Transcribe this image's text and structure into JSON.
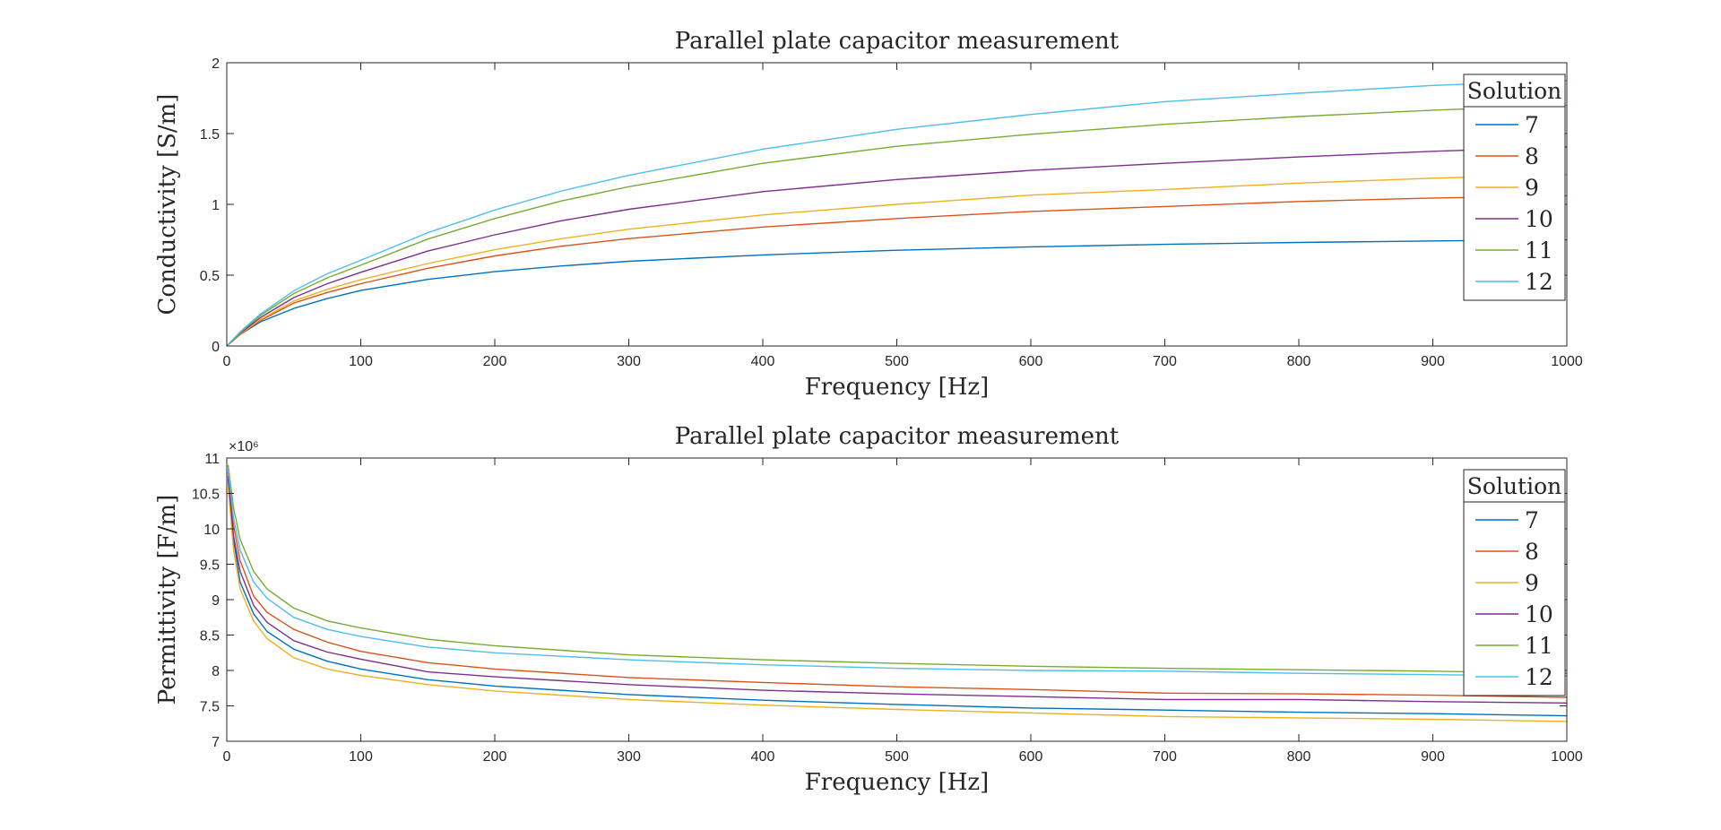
{
  "chart_data": [
    {
      "type": "line",
      "title": "Parallel plate capacitor measurement",
      "xlabel": "Frequency [Hz]",
      "ylabel": "Conductivity [S/m]",
      "xlim": [
        0,
        1000
      ],
      "ylim": [
        0,
        2
      ],
      "xticks": [
        0,
        100,
        200,
        300,
        400,
        500,
        600,
        700,
        800,
        900,
        1000
      ],
      "xtick_labels": [
        "0",
        "100",
        "200",
        "300",
        "400",
        "500",
        "600",
        "700",
        "800",
        "900",
        "1000"
      ],
      "yticks": [
        0,
        0.5,
        1,
        1.5,
        2
      ],
      "ytick_labels": [
        "0",
        "0.5",
        "1",
        "1.5",
        "2"
      ],
      "grid": false,
      "legend": {
        "title": "Solution",
        "location": "top-right"
      },
      "x": [
        0,
        10,
        25,
        50,
        75,
        100,
        150,
        200,
        250,
        300,
        400,
        500,
        600,
        700,
        800,
        900,
        1000
      ],
      "series": [
        {
          "name": "7",
          "color": "#0072BD",
          "values": [
            0,
            0.081,
            0.17,
            0.265,
            0.335,
            0.392,
            0.47,
            0.525,
            0.565,
            0.598,
            0.643,
            0.676,
            0.7,
            0.718,
            0.731,
            0.742,
            0.75
          ]
        },
        {
          "name": "8",
          "color": "#D95319",
          "values": [
            0,
            0.082,
            0.18,
            0.303,
            0.378,
            0.44,
            0.549,
            0.636,
            0.705,
            0.758,
            0.84,
            0.9,
            0.95,
            0.985,
            1.02,
            1.045,
            1.06
          ]
        },
        {
          "name": "9",
          "color": "#EDB120",
          "values": [
            0,
            0.085,
            0.186,
            0.318,
            0.4,
            0.468,
            0.582,
            0.68,
            0.758,
            0.825,
            0.925,
            1.0,
            1.065,
            1.105,
            1.15,
            1.185,
            1.21
          ]
        },
        {
          "name": "10",
          "color": "#7E2F8E",
          "values": [
            0,
            0.09,
            0.2,
            0.342,
            0.44,
            0.52,
            0.67,
            0.785,
            0.885,
            0.965,
            1.09,
            1.175,
            1.24,
            1.29,
            1.335,
            1.375,
            1.405
          ]
        },
        {
          "name": "11",
          "color": "#77AC30",
          "values": [
            0,
            0.095,
            0.215,
            0.37,
            0.481,
            0.57,
            0.755,
            0.9,
            1.025,
            1.125,
            1.29,
            1.41,
            1.495,
            1.565,
            1.62,
            1.665,
            1.7
          ]
        },
        {
          "name": "12",
          "color": "#4DBEEE",
          "values": [
            0,
            0.1,
            0.225,
            0.39,
            0.51,
            0.605,
            0.8,
            0.96,
            1.095,
            1.205,
            1.39,
            1.53,
            1.635,
            1.725,
            1.785,
            1.84,
            1.875
          ]
        }
      ]
    },
    {
      "type": "line",
      "title": "Parallel plate capacitor measurement",
      "xlabel": "Frequency [Hz]",
      "ylabel": "Permittivity [F/m]",
      "xlim": [
        0,
        1000
      ],
      "ylim": [
        7,
        11
      ],
      "exponent_label": "×10⁶",
      "xticks": [
        0,
        100,
        200,
        300,
        400,
        500,
        600,
        700,
        800,
        900,
        1000
      ],
      "xtick_labels": [
        "0",
        "100",
        "200",
        "300",
        "400",
        "500",
        "600",
        "700",
        "800",
        "900",
        "1000"
      ],
      "yticks": [
        7,
        7.5,
        8,
        8.5,
        9,
        9.5,
        10,
        10.5,
        11
      ],
      "ytick_labels": [
        "7",
        "7.5",
        "8",
        "8.5",
        "9",
        "9.5",
        "10",
        "10.5",
        "11"
      ],
      "grid": false,
      "legend": {
        "title": "Solution",
        "location": "top-right"
      },
      "x": [
        1,
        5,
        10,
        20,
        30,
        50,
        75,
        100,
        150,
        200,
        300,
        400,
        500,
        600,
        700,
        800,
        900,
        1000
      ],
      "series": [
        {
          "name": "7",
          "color": "#0072BD",
          "values": [
            10.7,
            9.85,
            9.25,
            8.8,
            8.55,
            8.3,
            8.13,
            8.02,
            7.87,
            7.78,
            7.66,
            7.58,
            7.52,
            7.47,
            7.44,
            7.41,
            7.39,
            7.36
          ]
        },
        {
          "name": "8",
          "color": "#D95319",
          "values": [
            10.8,
            10.05,
            9.55,
            9.05,
            8.82,
            8.58,
            8.4,
            8.27,
            8.11,
            8.02,
            7.9,
            7.83,
            7.77,
            7.73,
            7.68,
            7.67,
            7.65,
            7.62
          ]
        },
        {
          "name": "9",
          "color": "#EDB120",
          "values": [
            10.6,
            9.7,
            9.15,
            8.7,
            8.45,
            8.18,
            8.02,
            7.93,
            7.8,
            7.71,
            7.59,
            7.51,
            7.45,
            7.4,
            7.35,
            7.33,
            7.31,
            7.28
          ]
        },
        {
          "name": "10",
          "color": "#7E2F8E",
          "values": [
            10.75,
            9.9,
            9.4,
            8.92,
            8.68,
            8.42,
            8.26,
            8.16,
            7.98,
            7.91,
            7.8,
            7.72,
            7.67,
            7.63,
            7.59,
            7.59,
            7.56,
            7.54
          ]
        },
        {
          "name": "11",
          "color": "#77AC30",
          "values": [
            10.9,
            10.3,
            9.85,
            9.4,
            9.15,
            8.88,
            8.7,
            8.6,
            8.44,
            8.35,
            8.22,
            8.15,
            8.1,
            8.06,
            8.03,
            8.01,
            7.99,
            7.96
          ]
        },
        {
          "name": "12",
          "color": "#4DBEEE",
          "values": [
            10.85,
            10.15,
            9.7,
            9.25,
            9.02,
            8.75,
            8.58,
            8.48,
            8.33,
            8.25,
            8.15,
            8.08,
            8.03,
            8.0,
            7.99,
            7.96,
            7.94,
            7.92
          ]
        }
      ]
    }
  ]
}
